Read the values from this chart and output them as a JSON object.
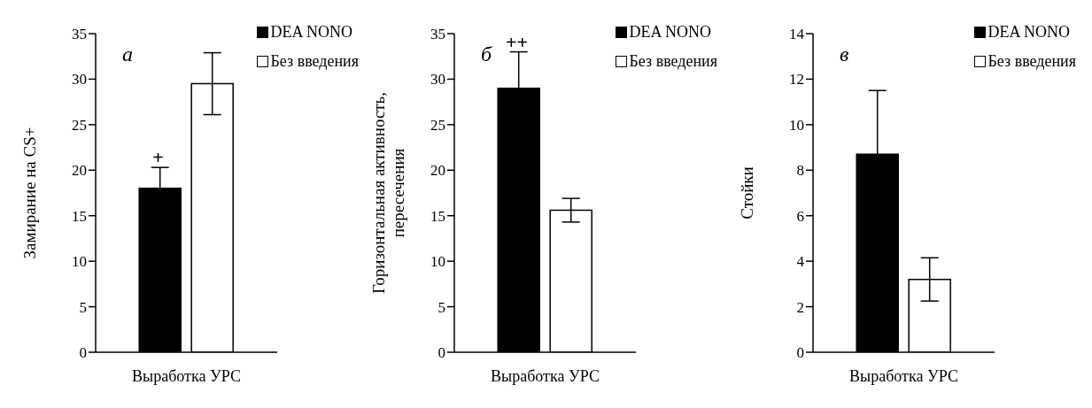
{
  "chart_data": [
    {
      "type": "bar",
      "title": "а",
      "categories": [
        "Выработка УРС"
      ],
      "ylabel": "Замирание на CS+",
      "ylim": [
        0,
        35
      ],
      "yticks": [
        0,
        5,
        10,
        15,
        20,
        25,
        30,
        35
      ],
      "grid": false,
      "legend": "top right",
      "series": [
        {
          "name": "DEA NONO",
          "color": "#000000",
          "values": [
            18
          ],
          "errors": [
            2.3
          ]
        },
        {
          "name": "Без введения",
          "color": "#ffffff",
          "values": [
            29.5
          ],
          "errors": [
            3.4
          ]
        }
      ],
      "annotations": [
        "+"
      ]
    },
    {
      "type": "bar",
      "title": "б",
      "categories": [
        "Выработка УРС"
      ],
      "ylabel": "Горизонтальная активность,\nпересечения",
      "ylim": [
        0,
        35
      ],
      "yticks": [
        0,
        5,
        10,
        15,
        20,
        25,
        30,
        35
      ],
      "grid": false,
      "legend": "top right",
      "series": [
        {
          "name": "DEA NONO",
          "color": "#000000",
          "values": [
            29
          ],
          "errors": [
            4
          ]
        },
        {
          "name": "Без введения",
          "color": "#ffffff",
          "values": [
            15.6
          ],
          "errors": [
            1.3
          ]
        }
      ],
      "annotations": [
        "++"
      ]
    },
    {
      "type": "bar",
      "title": "в",
      "categories": [
        "Выработка УРС"
      ],
      "ylabel": "Стойки",
      "ylim": [
        0,
        14
      ],
      "yticks": [
        0,
        2,
        4,
        6,
        8,
        10,
        12,
        14
      ],
      "grid": false,
      "legend": "top right",
      "series": [
        {
          "name": "DEA NONO",
          "color": "#000000",
          "values": [
            8.7
          ],
          "errors": [
            2.8
          ]
        },
        {
          "name": "Без введения",
          "color": "#ffffff",
          "values": [
            3.2
          ],
          "errors": [
            0.95
          ]
        }
      ]
    }
  ]
}
